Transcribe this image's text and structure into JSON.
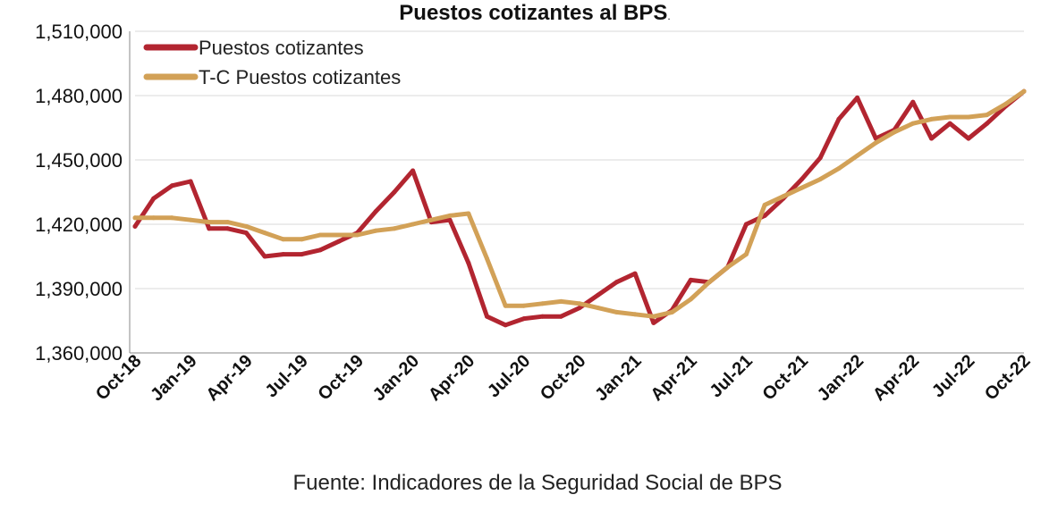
{
  "chart_data": {
    "type": "line",
    "title": "Puestos cotizantes al BPS",
    "title_suffix": ".",
    "source": "Fuente: Indicadores de la Seguridad Social de BPS",
    "xlabel": "",
    "ylabel": "",
    "ylim": [
      1360000,
      1510000
    ],
    "yticks": [
      1360000,
      1390000,
      1420000,
      1450000,
      1480000,
      1510000
    ],
    "ytick_labels": [
      "1,360,000",
      "1,390,000",
      "1,420,000",
      "1,450,000",
      "1,480,000",
      "1,510,000"
    ],
    "x": [
      "Oct-18",
      "Nov-18",
      "Dec-18",
      "Jan-19",
      "Feb-19",
      "Mar-19",
      "Apr-19",
      "May-19",
      "Jun-19",
      "Jul-19",
      "Aug-19",
      "Sep-19",
      "Oct-19",
      "Nov-19",
      "Dec-19",
      "Jan-20",
      "Feb-20",
      "Mar-20",
      "Apr-20",
      "May-20",
      "Jun-20",
      "Jul-20",
      "Aug-20",
      "Sep-20",
      "Oct-20",
      "Nov-20",
      "Dec-20",
      "Jan-21",
      "Feb-21",
      "Mar-21",
      "Apr-21",
      "May-21",
      "Jun-21",
      "Jul-21",
      "Aug-21",
      "Sep-21",
      "Oct-21",
      "Nov-21",
      "Dec-21",
      "Jan-22",
      "Feb-22",
      "Mar-22",
      "Apr-22",
      "May-22",
      "Jun-22",
      "Jul-22",
      "Aug-22",
      "Sep-22",
      "Oct-22"
    ],
    "x_tick_labels": [
      "Oct-18",
      "Jan-19",
      "Apr-19",
      "Jul-19",
      "Oct-19",
      "Jan-20",
      "Apr-20",
      "Jul-20",
      "Oct-20",
      "Jan-21",
      "Apr-21",
      "Jul-21",
      "Oct-21",
      "Jan-22",
      "Apr-22",
      "Jul-22",
      "Oct-22"
    ],
    "grid": true,
    "legend_position": "top-left",
    "series": [
      {
        "name": "Puestos cotizantes",
        "color": "#b22530",
        "values": [
          1419000,
          1432000,
          1438000,
          1440000,
          1418000,
          1418000,
          1416000,
          1405000,
          1406000,
          1406000,
          1408000,
          1412000,
          1416000,
          1426000,
          1435000,
          1445000,
          1421000,
          1422000,
          1402000,
          1377000,
          1373000,
          1376000,
          1377000,
          1377000,
          1381000,
          1387000,
          1393000,
          1397000,
          1374000,
          1380000,
          1394000,
          1393000,
          1400000,
          1420000,
          1424000,
          1432000,
          1441000,
          1451000,
          1469000,
          1479000,
          1460000,
          1464000,
          1477000,
          1460000,
          1467000,
          1460000,
          1467000,
          1475000,
          1482000
        ]
      },
      {
        "name": "T-C Puestos cotizantes",
        "color": "#d2a157",
        "values": [
          1423000,
          1423000,
          1423000,
          1422000,
          1421000,
          1421000,
          1419000,
          1416000,
          1413000,
          1413000,
          1415000,
          1415000,
          1415000,
          1417000,
          1418000,
          1420000,
          1422000,
          1424000,
          1425000,
          1404000,
          1382000,
          1382000,
          1383000,
          1384000,
          1383000,
          1381000,
          1379000,
          1378000,
          1377000,
          1379000,
          1385000,
          1393000,
          1400000,
          1406000,
          1429000,
          1433000,
          1437000,
          1441000,
          1446000,
          1452000,
          1458000,
          1463000,
          1467000,
          1469000,
          1470000,
          1470000,
          1471000,
          1476000,
          1482000
        ]
      }
    ]
  }
}
